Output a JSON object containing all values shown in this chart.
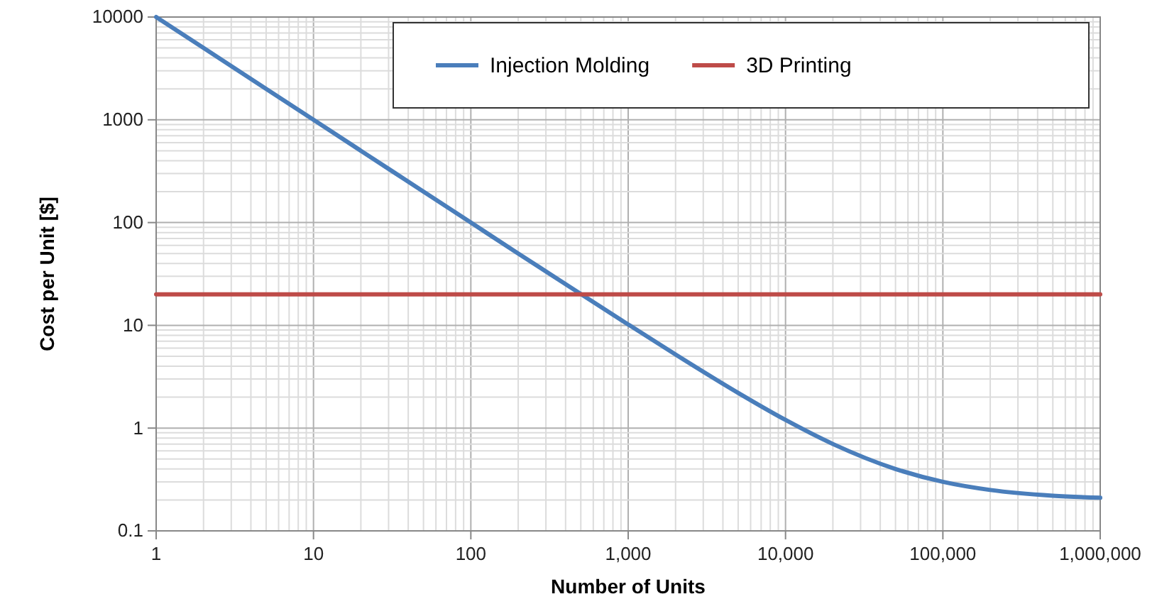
{
  "chart_data": {
    "type": "line",
    "xlabel": "Number of Units",
    "ylabel": "Cost per Unit [$]",
    "log": "xy",
    "xlim": [
      1,
      1000000
    ],
    "ylim": [
      0.1,
      10000
    ],
    "xticks": [
      1,
      10,
      100,
      {
        "value": 1000,
        "label": "1,000"
      },
      {
        "value": 10000,
        "label": "10,000"
      },
      {
        "value": 100000,
        "label": "100,000"
      },
      {
        "value": 1000000,
        "label": "1,000,000"
      }
    ],
    "yticks": [
      0.1,
      1,
      10,
      100,
      1000,
      10000
    ],
    "grid": true,
    "legend": "top right",
    "marker": "none",
    "line_style": "solid",
    "series": [
      {
        "name": "Injection Molding",
        "color": "#4a7ebb",
        "x": [
          1,
          2,
          5,
          10,
          20,
          50,
          100,
          200,
          500,
          1000,
          2000,
          5000,
          10000,
          20000,
          50000,
          100000,
          200000,
          500000,
          1000000
        ],
        "values": [
          10000,
          5000,
          2000,
          1000,
          500,
          200,
          100,
          50,
          20.2,
          10.2,
          5.2,
          2.2,
          1.2,
          0.7,
          0.4,
          0.3,
          0.25,
          0.22,
          0.21
        ]
      },
      {
        "name": "3D Printing",
        "color": "#be4b48",
        "x": [
          1,
          1000000
        ],
        "values": [
          20,
          20
        ]
      }
    ]
  }
}
